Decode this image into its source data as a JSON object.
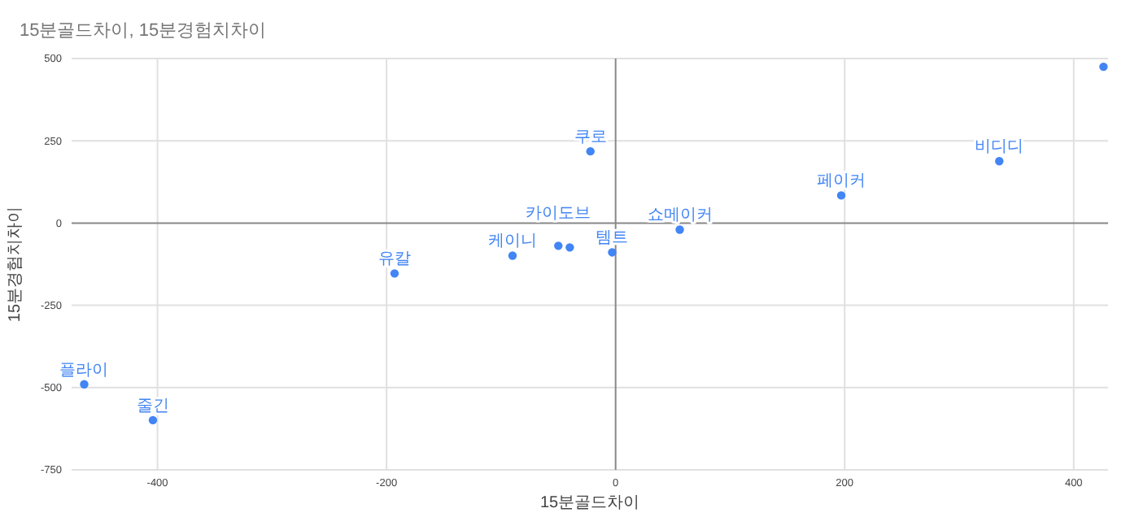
{
  "chart_data": {
    "type": "scatter",
    "title": "15분골드차이, 15분경험치차이",
    "xlabel": "15분골드차이",
    "ylabel": "15분경험치차이",
    "x": [
      -464,
      -404,
      -193,
      -90,
      -50,
      -40,
      -3,
      56,
      -22,
      197,
      335,
      426
    ],
    "values": [
      -490,
      -599,
      -153,
      -99,
      -69,
      -74,
      -89,
      -20,
      218,
      84,
      188,
      475
    ],
    "color": "#4285f4",
    "marker": "circle",
    "grid": true,
    "xlim": [
      -475,
      430
    ],
    "ylim": [
      -750,
      500
    ],
    "xticks": [
      -400,
      -200,
      0,
      200,
      400
    ],
    "yticks": [
      -750,
      -500,
      -250,
      0,
      250,
      500
    ],
    "annotations": [
      {
        "text": "플라이",
        "x": -464,
        "y": -490
      },
      {
        "text": "줄긴",
        "x": -404,
        "y": -599
      },
      {
        "text": "유칼",
        "x": -193,
        "y": -153
      },
      {
        "text": "케이니",
        "x": -90,
        "y": -99
      },
      {
        "text": "카이도브",
        "x": -50,
        "y": -69
      },
      {
        "text": "템트",
        "x": -3,
        "y": -89
      },
      {
        "text": "쇼메이커",
        "x": 56,
        "y": -20
      },
      {
        "text": "쿠로",
        "x": -22,
        "y": 218
      },
      {
        "text": "페이커",
        "x": 197,
        "y": 84
      },
      {
        "text": "비디디",
        "x": 335,
        "y": 188
      }
    ]
  }
}
